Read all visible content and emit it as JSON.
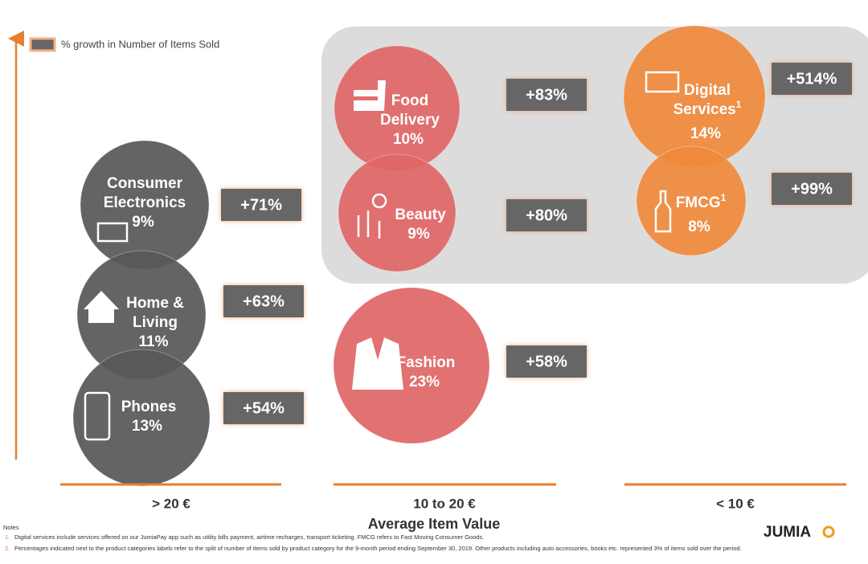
{
  "legend": "% growth in Number of Items Sold",
  "bubbles": [
    {
      "lines": [
        "Consumer",
        "Electronics"
      ],
      "share": "9%",
      "growth": "+71%"
    },
    {
      "lines": [
        "Home &",
        "Living"
      ],
      "share": "11%",
      "growth": "+63%"
    },
    {
      "lines": [
        "Phones"
      ],
      "share": "13%",
      "growth": "+54%"
    },
    {
      "lines": [
        "Food",
        "Delivery"
      ],
      "share": "10%",
      "growth": "+83%"
    },
    {
      "lines": [
        "Beauty"
      ],
      "share": "9%",
      "growth": "+80%"
    },
    {
      "lines": [
        "Fashion"
      ],
      "share": "23%",
      "growth": "+58%"
    },
    {
      "lines": [
        "Digital",
        "Services"
      ],
      "sup": "1",
      "share": "14%",
      "growth": "+514%"
    },
    {
      "lines": [
        "FMCG"
      ],
      "sup": "1",
      "share": "8%",
      "growth": "+99%"
    }
  ],
  "columns": [
    "> 20 €",
    "10 to 20 €",
    "< 10 €"
  ],
  "axis_title": "Average Item Value",
  "notes": {
    "title": "Notes",
    "items": [
      {
        "number": "1.",
        "text": "Digital services include services offered on our JumiaPay app such as utility bills payment, airtime recharges, transport ticketing. FMCG refers to Fast Moving Consumer Goods."
      },
      {
        "number": "2.",
        "text": "Percentages indicated next to the product categories labels refer to the split of number of items sold by product category for the 9-month period ending September 30, 2019. Other products including auto accessories, books etc. represented 3% of items sold over the period."
      }
    ]
  },
  "logo": "JUMIA"
}
